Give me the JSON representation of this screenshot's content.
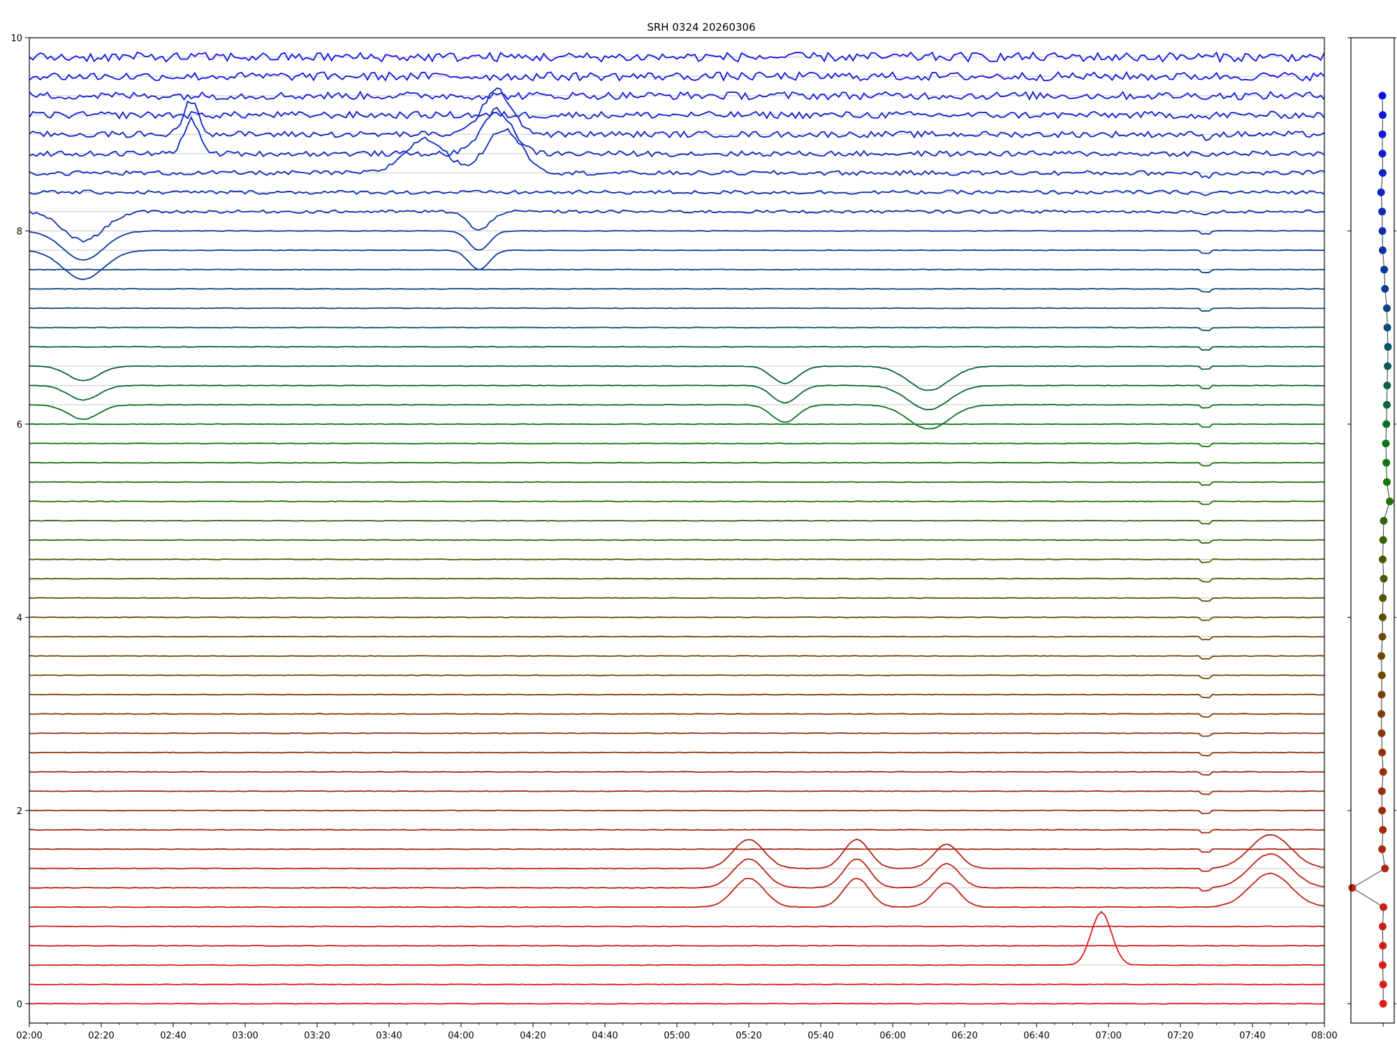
{
  "chart_data": [
    {
      "type": "line",
      "title": "SRH 0324 20260306",
      "xlabel": "",
      "ylabel": "",
      "x_range": [
        "02:00",
        "08:00"
      ],
      "ylim": [
        -0.2,
        10
      ],
      "x_tick_labels": [
        "02:00",
        "02:20",
        "02:40",
        "03:00",
        "03:20",
        "03:40",
        "04:00",
        "04:20",
        "04:40",
        "05:00",
        "05:20",
        "05:40",
        "06:00",
        "06:20",
        "06:40",
        "07:00",
        "07:20",
        "07:40",
        "08:00"
      ],
      "y_tick_labels": [
        "0",
        "2",
        "4",
        "6",
        "8",
        "10"
      ],
      "y_ticks": [
        0,
        2,
        4,
        6,
        8,
        10
      ],
      "grid": "horizontal lines at each trace baseline",
      "legend": "none",
      "trace_count": 50,
      "trace_spacing": 0.2,
      "trace_color_gradient": [
        "#e61a1a",
        "#a02a10",
        "#6a4a00",
        "#0a7a0a",
        "#0a3a9a",
        "#1010e6"
      ],
      "common_event_time": "07:27",
      "highlighted_traces": [
        {
          "level": 9.4,
          "description_color": "#1010e6"
        },
        {
          "level": 6.8,
          "description_color": "#1a7a1a"
        },
        {
          "level": 1.4,
          "description_color": "#e61a1a"
        },
        {
          "level": 0.4,
          "description_color": "#e61a1a"
        }
      ]
    },
    {
      "type": "scatter",
      "title": "",
      "points_y": [
        0,
        0.2,
        0.4,
        0.6,
        0.8,
        1.0,
        1.2,
        1.4,
        1.6,
        1.8,
        2.0,
        2.2,
        2.4,
        2.6,
        2.8,
        3.0,
        3.2,
        3.4,
        3.6,
        3.8,
        4.0,
        4.2,
        4.4,
        4.6,
        4.8,
        5.0,
        5.2,
        5.4,
        5.6,
        5.8,
        6.0,
        6.2,
        6.4,
        6.6,
        6.8,
        7.0,
        7.2,
        7.4,
        7.6,
        7.8,
        8.0,
        8.2,
        8.4,
        8.6,
        8.8,
        9.0,
        9.2,
        9.4
      ],
      "points_x": [
        0.18,
        0.18,
        0.16,
        0.17,
        0.16,
        0.19,
        -1.0,
        0.25,
        0.14,
        0.17,
        0.14,
        0.13,
        0.18,
        0.14,
        0.12,
        0.11,
        0.12,
        0.13,
        0.11,
        0.15,
        0.16,
        0.17,
        0.2,
        0.16,
        0.18,
        0.2,
        0.43,
        0.32,
        0.3,
        0.28,
        0.3,
        0.32,
        0.33,
        0.35,
        0.36,
        0.34,
        0.32,
        0.25,
        0.22,
        0.16,
        0.15,
        0.14,
        0.1,
        0.16,
        0.15,
        0.15,
        0.16,
        0.15
      ],
      "xlim": [
        -1.05,
        0.6
      ],
      "ylim": [
        -0.2,
        10
      ],
      "connected": true
    }
  ]
}
